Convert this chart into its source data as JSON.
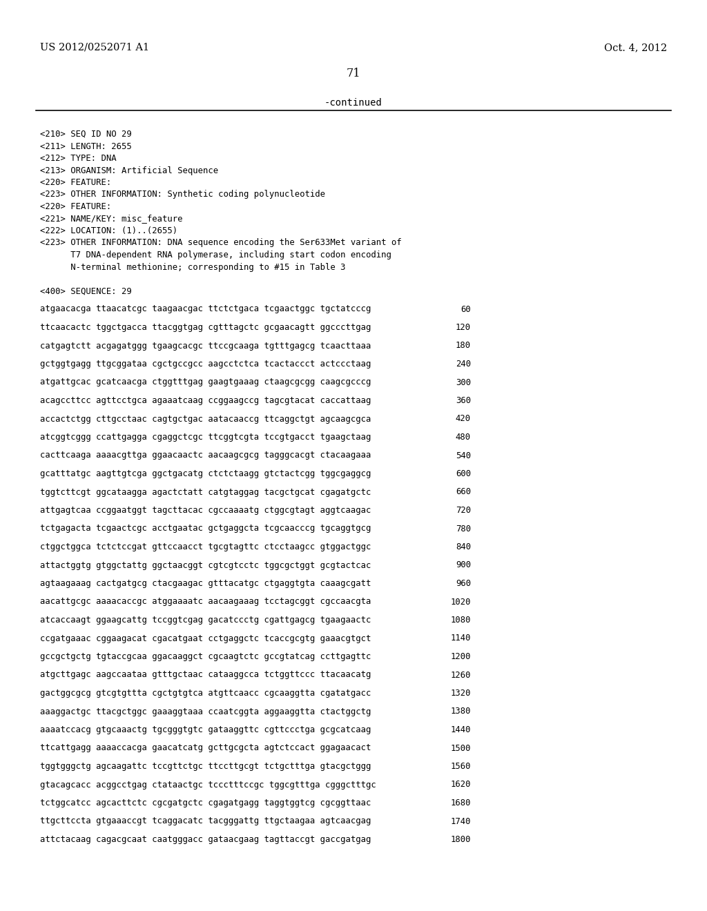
{
  "header_left": "US 2012/0252071 A1",
  "header_right": "Oct. 4, 2012",
  "page_number": "71",
  "continued_text": "-continued",
  "background_color": "#ffffff",
  "text_color": "#000000",
  "metadata_lines": [
    "<210> SEQ ID NO 29",
    "<211> LENGTH: 2655",
    "<212> TYPE: DNA",
    "<213> ORGANISM: Artificial Sequence",
    "<220> FEATURE:",
    "<223> OTHER INFORMATION: Synthetic coding polynucleotide",
    "<220> FEATURE:",
    "<221> NAME/KEY: misc_feature",
    "<222> LOCATION: (1)..(2655)",
    "<223> OTHER INFORMATION: DNA sequence encoding the Ser633Met variant of",
    "      T7 DNA-dependent RNA polymerase, including start codon encoding",
    "      N-terminal methionine; corresponding to #15 in Table 3",
    "",
    "<400> SEQUENCE: 29"
  ],
  "sequence_lines": [
    [
      "atgaacacga ttaacatcgc taagaacgac ttctctgaca tcgaactggc tgctatcccg",
      "60"
    ],
    [
      "ttcaacactc tggctgacca ttacggtgag cgtttagctc gcgaacagtt ggcccttgag",
      "120"
    ],
    [
      "catgagtctt acgagatggg tgaagcacgc ttccgcaaga tgtttgagcg tcaacttaaa",
      "180"
    ],
    [
      "gctggtgagg ttgcggataa cgctgccgcc aagcctctca tcactaccct actccctaag",
      "240"
    ],
    [
      "atgattgcac gcatcaacga ctggtttgag gaagtgaaag ctaagcgcgg caagcgcccg",
      "300"
    ],
    [
      "acagccttcc agttcctgca agaaatcaag ccggaagccg tagcgtacat caccattaag",
      "360"
    ],
    [
      "accactctgg cttgcctaac cagtgctgac aatacaaccg ttcaggctgt agcaagcgca",
      "420"
    ],
    [
      "atcggtcggg ccattgagga cgaggctcgc ttcggtcgta tccgtgacct tgaagctaag",
      "480"
    ],
    [
      "cacttcaaga aaaacgttga ggaacaactc aacaagcgcg tagggcacgt ctacaagaaa",
      "540"
    ],
    [
      "gcatttatgc aagttgtcga ggctgacatg ctctctaagg gtctactcgg tggcgaggcg",
      "600"
    ],
    [
      "tggtcttcgt ggcataagga agactctatt catgtaggag tacgctgcat cgagatgctc",
      "660"
    ],
    [
      "attgagtcaa ccggaatggt tagcttacac cgccaaaatg ctggcgtagt aggtcaagac",
      "720"
    ],
    [
      "tctgagacta tcgaactcgc acctgaatac gctgaggcta tcgcaacccg tgcaggtgcg",
      "780"
    ],
    [
      "ctggctggca tctctccgat gttccaacct tgcgtagttc ctcctaagcc gtggactggc",
      "840"
    ],
    [
      "attactggtg gtggctattg ggctaacggt cgtcgtcctc tggcgctggt gcgtactcac",
      "900"
    ],
    [
      "agtaagaaag cactgatgcg ctacgaagac gtttacatgc ctgaggtgta caaagcgatt",
      "960"
    ],
    [
      "aacattgcgc aaaacaccgc atggaaaatc aacaagaaag tcctagcggt cgccaacgta",
      "1020"
    ],
    [
      "atcaccaagt ggaagcattg tccggtcgag gacatccctg cgattgagcg tgaagaactc",
      "1080"
    ],
    [
      "ccgatgaaac cggaagacat cgacatgaat cctgaggctc tcaccgcgtg gaaacgtgct",
      "1140"
    ],
    [
      "gccgctgctg tgtaccgcaa ggacaaggct cgcaagtctc gccgtatcag ccttgagttc",
      "1200"
    ],
    [
      "atgcttgagc aagccaataa gtttgctaac cataaggcca tctggttccc ttacaacatg",
      "1260"
    ],
    [
      "gactggcgcg gtcgtgttta cgctgtgtca atgttcaacc cgcaaggtta cgatatgacc",
      "1320"
    ],
    [
      "aaaggactgc ttacgctggc gaaaggtaaa ccaatcggta aggaaggtta ctactggctg",
      "1380"
    ],
    [
      "aaaatccacg gtgcaaactg tgcgggtgtc gataaggttc cgttccctga gcgcatcaag",
      "1440"
    ],
    [
      "ttcattgagg aaaaccacga gaacatcatg gcttgcgcta agtctccact ggagaacact",
      "1500"
    ],
    [
      "tggtgggctg agcaagattc tccgttctgc ttccttgcgt tctgctttga gtacgctggg",
      "1560"
    ],
    [
      "gtacagcacc acggcctgag ctataactgc tccctttccgc tggcgtttga cgggctttgc",
      "1620"
    ],
    [
      "tctggcatcc agcacttctc cgcgatgctc cgagatgagg taggtggtcg cgcggttaac",
      "1680"
    ],
    [
      "ttgcttccta gtgaaaccgt tcaggacatc tacgggattg ttgctaagaa agtcaacgag",
      "1740"
    ],
    [
      "attctacaag cagacgcaat caatgggacc gataacgaag tagttaccgt gaccgatgag",
      "1800"
    ]
  ]
}
